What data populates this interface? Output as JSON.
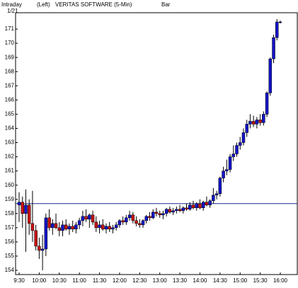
{
  "chart_data": {
    "type": "candlestick",
    "title": "VERITAS SOFTWARE (5-Min)",
    "period_label": "Intraday",
    "date_label": "1/21",
    "axis_side": "(Left)",
    "style_label": "Bar",
    "categories": [
      "9:30",
      null,
      null,
      null,
      null,
      null,
      "10:00",
      null,
      null,
      null,
      null,
      null,
      "10:30",
      null,
      null,
      null,
      null,
      null,
      "11:00",
      null,
      null,
      null,
      null,
      null,
      "11:30",
      null,
      null,
      null,
      null,
      null,
      "12:00",
      null,
      null,
      null,
      null,
      null,
      "12:30",
      null,
      null,
      null,
      null,
      null,
      "13:00",
      null,
      null,
      null,
      null,
      null,
      "13:30",
      null,
      null,
      null,
      null,
      null,
      "14:00",
      null,
      null,
      null,
      null,
      null,
      "14:30",
      null,
      null,
      null,
      null,
      null,
      "15:00",
      null,
      null,
      null,
      null,
      null,
      "15:30",
      null,
      null,
      null,
      null,
      null,
      "16:00"
    ],
    "open": [
      158.6,
      158.8,
      158.0,
      158.6,
      157.3,
      156.8,
      155.7,
      155.4,
      155.5,
      157.7,
      157.0,
      157.3,
      157.0,
      156.8,
      157.2,
      156.9,
      157.1,
      156.9,
      157.2,
      157.5,
      157.8,
      157.6,
      157.9,
      157.4,
      157.0,
      157.2,
      156.9,
      157.1,
      156.9,
      157.0,
      157.2,
      157.5,
      157.4,
      157.7,
      157.9,
      157.5,
      157.3,
      157.2,
      157.5,
      157.8,
      157.7,
      158.1,
      158.0,
      157.9,
      158.0,
      158.3,
      158.1,
      158.2,
      158.3,
      158.2,
      158.4,
      158.3,
      158.6,
      158.4,
      158.7,
      158.4,
      158.8,
      158.6,
      158.9,
      159.3,
      159.4,
      160.5,
      161.0,
      161.1,
      162.0,
      162.2,
      162.8,
      163.0,
      163.7,
      164.3,
      164.5,
      164.3,
      164.6,
      164.4,
      165.0,
      166.5,
      168.9,
      170.4,
      171.5
    ],
    "high": [
      159.5,
      159.2,
      159.7,
      159.0,
      159.6,
      157.2,
      156.3,
      156.5,
      158.0,
      158.3,
      157.6,
      158.0,
      157.4,
      157.5,
      157.6,
      157.3,
      157.5,
      157.4,
      157.7,
      158.2,
      158.3,
      158.0,
      158.2,
      157.8,
      157.5,
      157.6,
      157.3,
      157.4,
      157.2,
      157.4,
      157.6,
      157.8,
      157.9,
      158.2,
      158.1,
      157.8,
      157.6,
      157.6,
      157.9,
      158.1,
      158.3,
      158.4,
      158.2,
      158.2,
      158.4,
      158.5,
      158.4,
      158.5,
      158.6,
      158.5,
      158.7,
      158.8,
      158.9,
      158.8,
      159.0,
      158.9,
      159.2,
      159.0,
      159.8,
      159.6,
      160.6,
      161.3,
      161.8,
      162.2,
      162.8,
      163.0,
      163.4,
      164.0,
      164.6,
      165.0,
      164.9,
      164.8,
      165.0,
      165.2,
      166.6,
      169.0,
      170.6,
      171.7,
      171.6
    ],
    "low": [
      157.4,
      157.0,
      155.3,
      156.5,
      156.0,
      155.4,
      154.8,
      154.0,
      155.0,
      156.8,
      156.5,
      156.9,
      156.4,
      156.4,
      156.8,
      156.5,
      156.7,
      156.6,
      156.9,
      157.1,
      157.4,
      157.0,
      157.2,
      156.7,
      156.6,
      156.8,
      156.6,
      156.7,
      156.6,
      156.8,
      157.0,
      157.2,
      157.2,
      157.5,
      157.3,
      157.1,
      157.0,
      157.0,
      157.3,
      157.5,
      157.6,
      157.8,
      157.7,
      157.6,
      157.8,
      158.0,
      157.9,
      158.0,
      158.1,
      158.0,
      158.2,
      158.2,
      158.3,
      158.2,
      158.3,
      158.2,
      158.5,
      158.4,
      158.7,
      159.0,
      159.2,
      160.2,
      160.7,
      160.9,
      161.7,
      162.0,
      162.5,
      162.8,
      163.4,
      164.0,
      164.1,
      164.0,
      164.2,
      164.2,
      164.8,
      166.3,
      168.6,
      170.2,
      171.4
    ],
    "close": [
      158.8,
      158.0,
      158.6,
      157.3,
      156.8,
      155.7,
      155.4,
      155.5,
      157.7,
      157.0,
      157.3,
      157.0,
      156.8,
      157.2,
      156.9,
      157.1,
      156.9,
      157.2,
      157.5,
      157.8,
      157.6,
      157.9,
      157.4,
      157.0,
      157.2,
      156.9,
      157.1,
      156.9,
      157.0,
      157.2,
      157.5,
      157.4,
      157.7,
      157.9,
      157.5,
      157.3,
      157.2,
      157.5,
      157.8,
      157.7,
      158.1,
      158.0,
      157.9,
      158.0,
      158.3,
      158.1,
      158.2,
      158.3,
      158.2,
      158.4,
      158.3,
      158.6,
      158.4,
      158.7,
      158.4,
      158.8,
      158.6,
      158.9,
      159.3,
      159.4,
      160.5,
      161.0,
      161.1,
      162.0,
      162.2,
      162.8,
      163.0,
      163.7,
      164.3,
      164.5,
      164.3,
      164.6,
      164.4,
      165.0,
      166.5,
      168.9,
      170.4,
      171.5,
      171.5
    ],
    "up_color": "#1414c8",
    "down_color": "#c81414",
    "reference_line": 158.7,
    "reference_color": "#1a2a8a",
    "ylim": [
      153.7,
      172.15
    ],
    "yticks": [
      154,
      155,
      156,
      157,
      158,
      159,
      160,
      161,
      162,
      163,
      164,
      165,
      166,
      167,
      168,
      169,
      170,
      171
    ],
    "grid": false
  }
}
